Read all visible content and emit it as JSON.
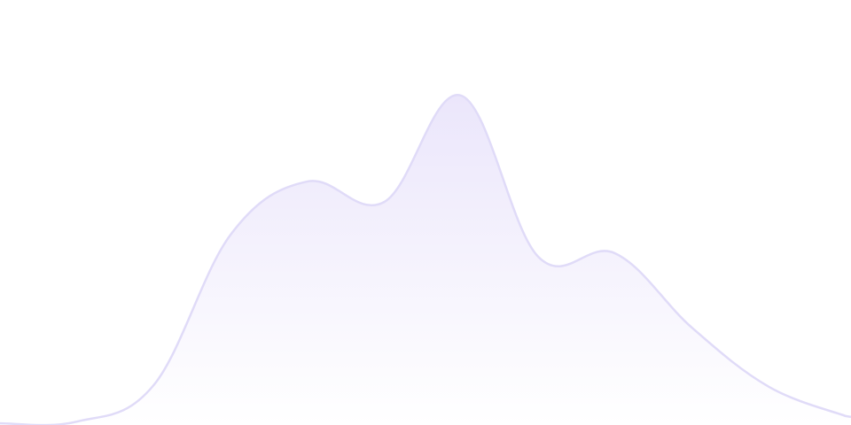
{
  "chart_data": {
    "type": "area",
    "title": "",
    "xlabel": "",
    "ylabel": "",
    "x": [
      0,
      1,
      2,
      3,
      4,
      5,
      6,
      7,
      8,
      9,
      10,
      11
    ],
    "series": [
      {
        "values": [
          0.4,
          0.8,
          9.4,
          44.8,
          57.3,
          52.5,
          77.5,
          39.6,
          40.4,
          22.9,
          9.0,
          2.1
        ]
      }
    ],
    "ylim": [
      0,
      100
    ],
    "grid": false,
    "axes_visible": false,
    "legend": "none",
    "curve": "smooth",
    "colors": {
      "stroke": "#e0dbf8",
      "fill_top": "#ebe6fb",
      "fill_bottom": "#ffffff"
    }
  }
}
